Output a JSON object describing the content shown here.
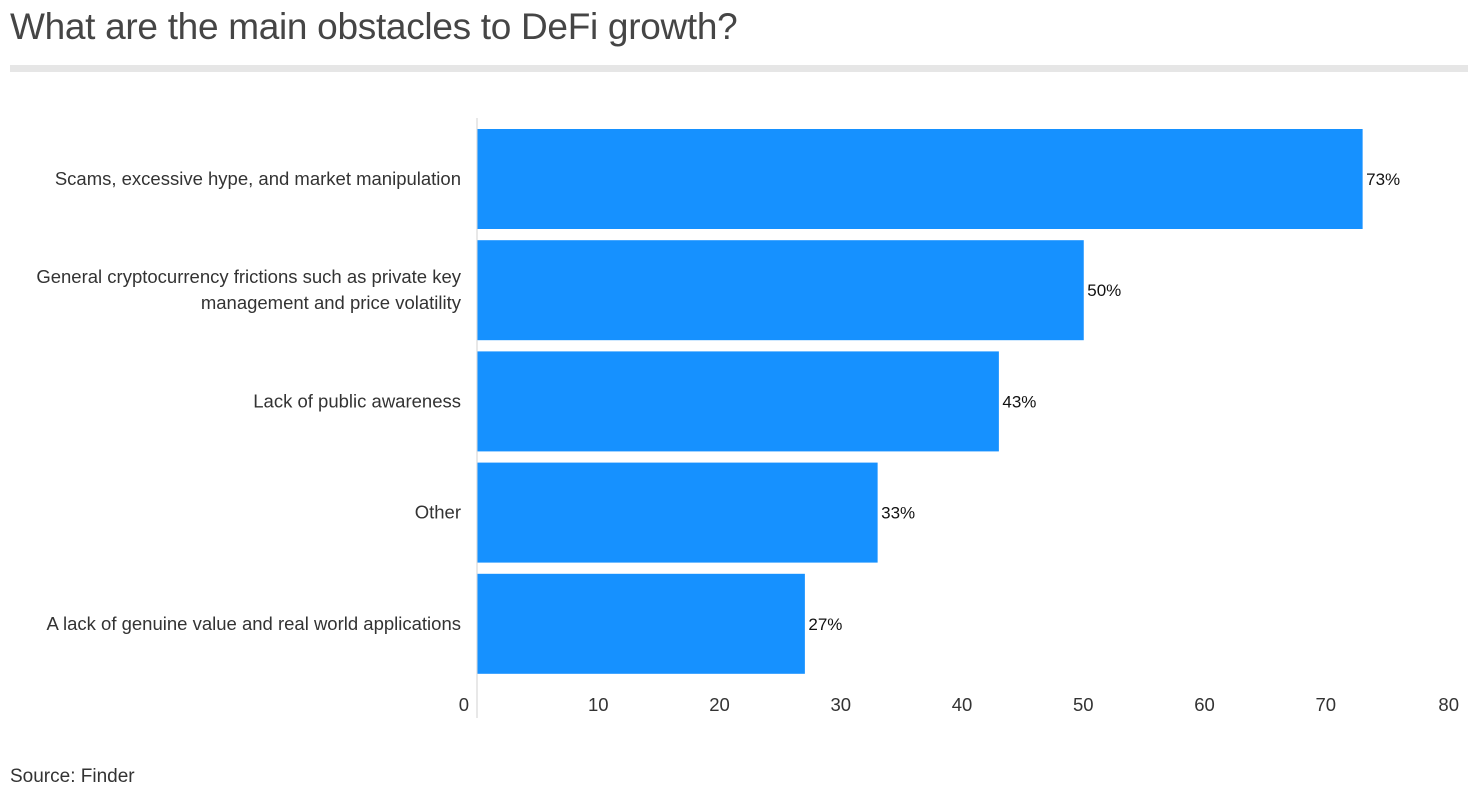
{
  "title": "What are the main obstacles to DeFi growth?",
  "source": "Source: Finder",
  "colors": {
    "bar": "#1691ff",
    "title": "#454545",
    "axis": "#d9d9d9",
    "label": "#333333",
    "value": "#111111"
  },
  "chart_data": {
    "type": "bar",
    "orientation": "horizontal",
    "title": "What are the main obstacles to DeFi growth?",
    "categories": [
      [
        "Scams, excessive hype, and market manipulation"
      ],
      [
        "General cryptocurrency frictions such as private key",
        "management and price volatility"
      ],
      [
        "Lack of public awareness"
      ],
      [
        "Other"
      ],
      [
        "A lack of genuine value and real world applications"
      ]
    ],
    "values": [
      73,
      50,
      43,
      33,
      27
    ],
    "value_labels": [
      "73%",
      "50%",
      "43%",
      "33%",
      "27%"
    ],
    "xlim": [
      0,
      80
    ],
    "xticks": [
      0,
      10,
      20,
      30,
      40,
      50,
      60,
      70,
      80
    ],
    "xlabel": "",
    "ylabel": "",
    "grid": false,
    "legend": "none"
  }
}
